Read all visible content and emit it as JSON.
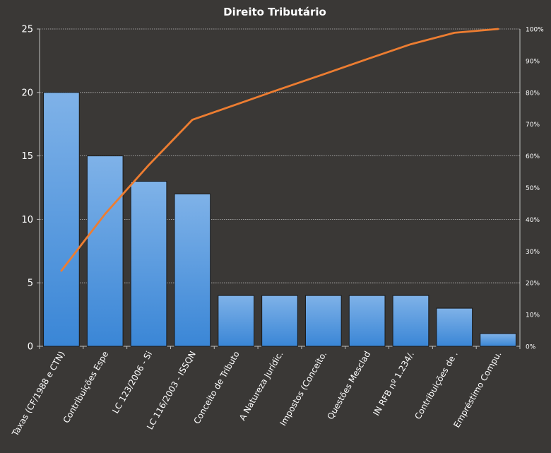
{
  "chart_data": {
    "type": "bar",
    "title": "Direito  Tributário",
    "xlabel": "",
    "ylabel": "",
    "categories": [
      "Taxas (CF/1988 e CTN)",
      "Contribuições Espe",
      "LC 123/2006 - Si",
      "LC 116/2003 - ISSQN",
      "Conceito de Tributo",
      "A Natureza Jurídic.",
      "Impostos (Conceito.",
      "Questões Mesclad",
      "IN RFB nº 1.234/.",
      "Contribuições de .",
      "Empréstimo Compu."
    ],
    "series": [
      {
        "type": "bar",
        "values": [
          20,
          15,
          13,
          12,
          4,
          4,
          4,
          4,
          4,
          3,
          1
        ]
      },
      {
        "type": "line",
        "axis": "secondary",
        "cumulative_percent": [
          23.8,
          41.7,
          57.1,
          71.4,
          76.2,
          81.0,
          85.7,
          90.5,
          95.2,
          98.8,
          100.0
        ]
      }
    ],
    "ylim": [
      0,
      25
    ],
    "yticks": [
      0,
      5,
      10,
      15,
      20,
      25
    ],
    "y2lim": [
      0,
      100
    ],
    "y2ticks": [
      "0%",
      "10%",
      "20%",
      "30%",
      "40%",
      "50%",
      "60%",
      "70%",
      "80%",
      "90%",
      "100%"
    ],
    "grid": true,
    "legend": "none",
    "colors": {
      "background": "#3a3836",
      "bar_top": "#7fb2e8",
      "bar_bottom": "#3a86d6",
      "bar_edge": "#1a1a1a",
      "line": "#ed7d31",
      "grid": "#bfbfbf",
      "text": "#ffffff"
    }
  }
}
